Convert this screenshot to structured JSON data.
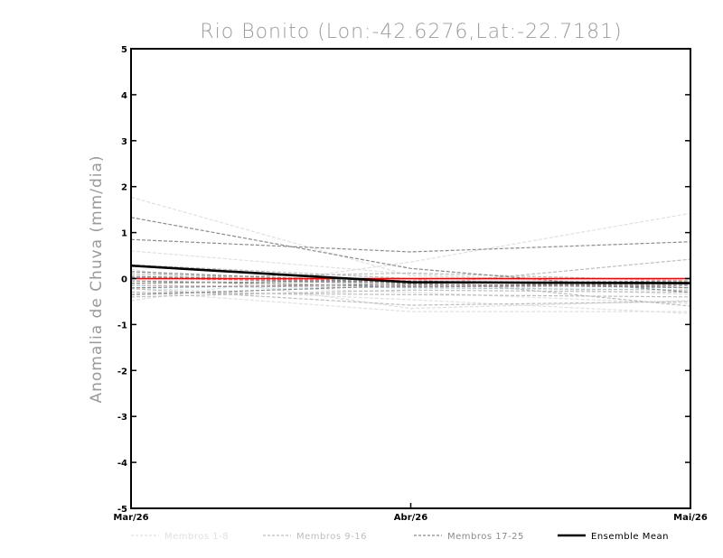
{
  "chart_data": {
    "type": "line",
    "title": "Rio Bonito (Lon:-42.6276,Lat:-22.7181)",
    "ylabel": "Anomalia de Chuva (mm/dia)",
    "xlabel": "",
    "categories": [
      "Mar/26",
      "Abr/26",
      "Mai/26"
    ],
    "ylim": [
      -5,
      5
    ],
    "yticks": [
      "-5",
      "-4",
      "-3",
      "-2",
      "-1",
      "0",
      "1",
      "2",
      "3",
      "4",
      "5"
    ],
    "reference_line": {
      "y": 0,
      "color": "#ff0000"
    },
    "legend": [
      {
        "label": "Membros 1-8",
        "color": "#e0e0e0",
        "style": "dashed"
      },
      {
        "label": "Membros 9-16",
        "color": "#bdbdbd",
        "style": "dashed"
      },
      {
        "label": "Membros 17-25",
        "color": "#8c8c8c",
        "style": "dashed"
      },
      {
        "label": "Ensemble Mean",
        "color": "#000000",
        "style": "solid"
      }
    ],
    "series": [
      {
        "group": "Membros 1-8",
        "values": [
          1.77,
          0.06,
          -0.15
        ]
      },
      {
        "group": "Membros 1-8",
        "values": [
          -0.48,
          0.36,
          1.42
        ]
      },
      {
        "group": "Membros 1-8",
        "values": [
          -0.2,
          -0.46,
          -0.76
        ]
      },
      {
        "group": "Membros 1-8",
        "values": [
          0.2,
          -0.65,
          -0.48
        ]
      },
      {
        "group": "Membros 1-8",
        "values": [
          -0.12,
          -0.3,
          -0.55
        ]
      },
      {
        "group": "Membros 1-8",
        "values": [
          -0.05,
          -0.1,
          -0.35
        ]
      },
      {
        "group": "Membros 1-8",
        "values": [
          -0.28,
          -0.72,
          -0.72
        ]
      },
      {
        "group": "Membros 1-8",
        "values": [
          0.6,
          0.1,
          -0.2
        ]
      },
      {
        "group": "Membros 9-16",
        "values": [
          -0.3,
          -0.35,
          -0.4
        ]
      },
      {
        "group": "Membros 9-16",
        "values": [
          0.05,
          -0.15,
          0.42
        ]
      },
      {
        "group": "Membros 9-16",
        "values": [
          -0.22,
          -0.58,
          -0.5
        ]
      },
      {
        "group": "Membros 9-16",
        "values": [
          0.0,
          0.12,
          -0.05
        ]
      },
      {
        "group": "Membros 9-16",
        "values": [
          -0.4,
          -0.25,
          -0.3
        ]
      },
      {
        "group": "Membros 9-16",
        "values": [
          0.1,
          -0.05,
          -0.1
        ]
      },
      {
        "group": "Membros 9-16",
        "values": [
          -0.15,
          -0.2,
          -0.25
        ]
      },
      {
        "group": "Membros 9-16",
        "values": [
          0.3,
          0.0,
          -0.6
        ]
      },
      {
        "group": "Membros 17-25",
        "values": [
          1.33,
          0.22,
          -0.3
        ]
      },
      {
        "group": "Membros 17-25",
        "values": [
          0.85,
          0.58,
          0.8
        ]
      },
      {
        "group": "Membros 17-25",
        "values": [
          -0.35,
          -0.15,
          -0.12
        ]
      },
      {
        "group": "Membros 17-25",
        "values": [
          -0.1,
          -0.05,
          -0.2
        ]
      },
      {
        "group": "Membros 17-25",
        "values": [
          0.15,
          -0.1,
          -0.05
        ]
      },
      {
        "group": "Membros 17-25",
        "values": [
          -0.2,
          -0.12,
          -0.2
        ]
      },
      {
        "group": "Membros 17-25",
        "values": [
          0.05,
          -0.08,
          -0.1
        ]
      },
      {
        "group": "Membros 17-25",
        "values": [
          -0.05,
          -0.18,
          -0.15
        ]
      },
      {
        "group": "Membros 17-25",
        "values": [
          0.02,
          -0.1,
          -0.08
        ]
      },
      {
        "group": "Ensemble Mean",
        "values": [
          0.28,
          -0.08,
          -0.1
        ]
      }
    ]
  }
}
